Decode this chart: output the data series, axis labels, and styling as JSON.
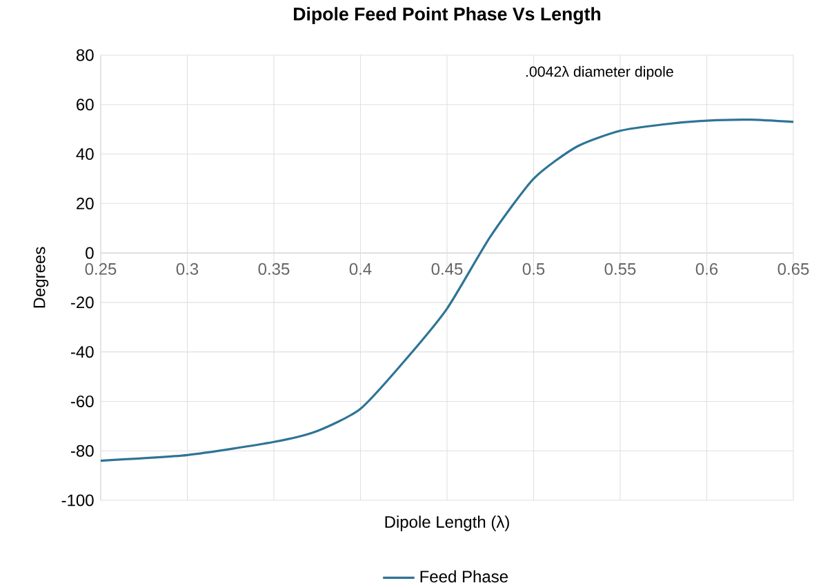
{
  "chart_data": {
    "type": "line",
    "title": "Dipole Feed Point Phase Vs Length",
    "xlabel": "Dipole Length (λ)",
    "ylabel": "Degrees",
    "annotations": [
      ".0042λ diameter dipole"
    ],
    "x": [
      0.25,
      0.3,
      0.35,
      0.375,
      0.4,
      0.425,
      0.45,
      0.475,
      0.5,
      0.525,
      0.55,
      0.575,
      0.6,
      0.625,
      0.65
    ],
    "series": [
      {
        "name": "Feed Phase",
        "color": "#2e7496",
        "values": [
          -84,
          -81.7,
          -76.4,
          -72,
          -63,
          -44,
          -22.5,
          6.6,
          30,
          43,
          49.4,
          52,
          53.5,
          53.9,
          53
        ]
      }
    ],
    "xlim": [
      0.25,
      0.65
    ],
    "xticks": [
      0.25,
      0.3,
      0.35,
      0.4,
      0.45,
      0.5,
      0.55,
      0.6,
      0.65
    ],
    "ylim": [
      -100,
      80
    ],
    "yticks": [
      -100,
      -80,
      -60,
      -40,
      -20,
      0,
      20,
      40,
      60,
      80
    ],
    "grid": true,
    "legend": "bottom",
    "marker": "none",
    "line_style": "solid"
  }
}
